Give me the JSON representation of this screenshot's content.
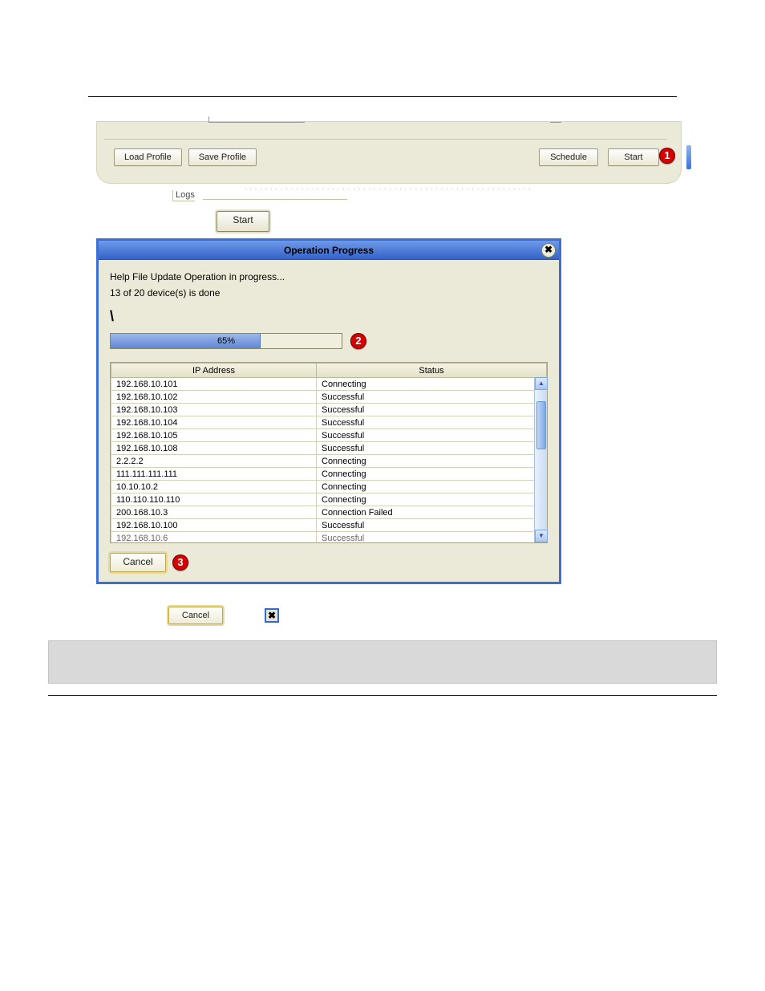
{
  "toolbar": {
    "load_profile": "Load Profile",
    "save_profile": "Save Profile",
    "schedule": "Schedule",
    "start": "Start"
  },
  "logs_label": "Logs",
  "start_button": "Start",
  "callouts": {
    "one": "1",
    "two": "2",
    "three": "3"
  },
  "dialog": {
    "title": "Operation Progress",
    "close_glyph": "✖",
    "msg1": "Help File Update Operation in progress...",
    "msg2": "13 of 20 device(s) is done",
    "spinner": "\\",
    "progress_pct": 65,
    "progress_label": "65%",
    "columns": {
      "ip": "IP Address",
      "status": "Status"
    },
    "rows": [
      {
        "ip": "192.168.10.101",
        "status": "Connecting"
      },
      {
        "ip": "192.168.10.102",
        "status": "Successful"
      },
      {
        "ip": "192.168.10.103",
        "status": "Successful"
      },
      {
        "ip": "192.168.10.104",
        "status": "Successful"
      },
      {
        "ip": "192.168.10.105",
        "status": "Successful"
      },
      {
        "ip": "192.168.10.108",
        "status": "Successful"
      },
      {
        "ip": "2.2.2.2",
        "status": "Connecting"
      },
      {
        "ip": "111.111.111.111",
        "status": "Connecting"
      },
      {
        "ip": "10.10.10.2",
        "status": "Connecting"
      },
      {
        "ip": "110.110.110.110",
        "status": "Connecting"
      },
      {
        "ip": "200.168.10.3",
        "status": "Connection Failed"
      },
      {
        "ip": "192.168.10.100",
        "status": "Successful"
      },
      {
        "ip": "192.168.10.6",
        "status": "Successful"
      }
    ],
    "cancel": "Cancel"
  },
  "inline": {
    "cancel": "Cancel",
    "close_glyph": "✖"
  },
  "colors": {
    "dialog_border": "#3b6fd3",
    "panel_bg": "#ebe9d7",
    "progress_fill_top": "#9fb8e8",
    "progress_fill_bottom": "#5f87d4",
    "callout_bg": "#d20000"
  }
}
